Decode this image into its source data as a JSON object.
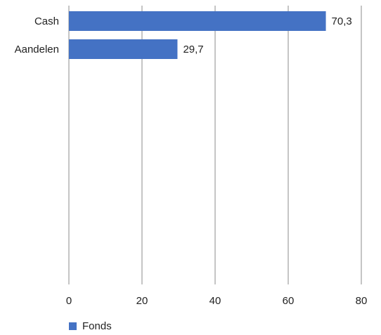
{
  "chart_data": {
    "type": "bar",
    "orientation": "horizontal",
    "categories": [
      "Cash",
      "Aandelen"
    ],
    "series": [
      {
        "name": "Fonds",
        "values": [
          70.3,
          29.7
        ],
        "color": "#4472C4"
      }
    ],
    "data_labels": [
      "70,3",
      "29,7"
    ],
    "xlim": [
      0,
      80
    ],
    "xticks": [
      0,
      20,
      40,
      60,
      80
    ],
    "xtick_labels": [
      "0",
      "20",
      "40",
      "60",
      "80"
    ],
    "grid": "vertical",
    "legend_position": "bottom-left"
  }
}
